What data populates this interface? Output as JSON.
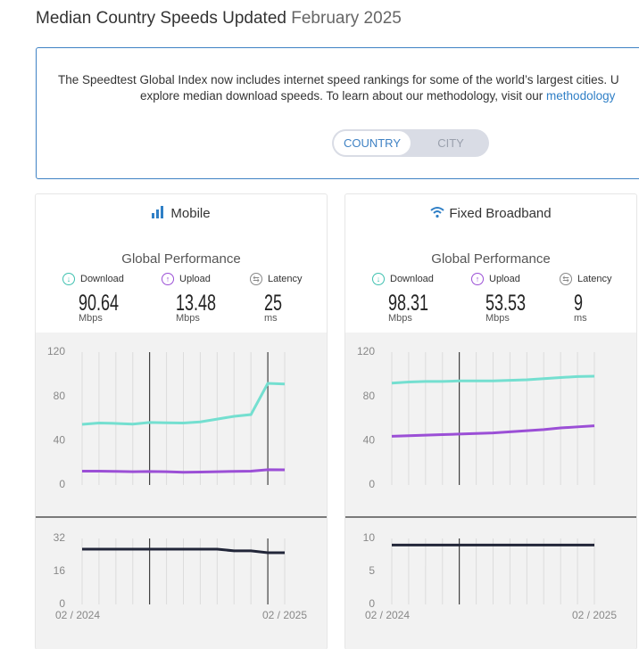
{
  "header": {
    "title": "Median Country Speeds Updated",
    "date": "February 2025"
  },
  "notice": {
    "line1": "The Speedtest Global Index now includes internet speed rankings for some of the world’s largest cities. U",
    "line2": "explore median download speeds. To learn about our methodology, visit our ",
    "link": "methodology"
  },
  "toggle": [
    "COUNTRY",
    "CITY"
  ],
  "panels": [
    {
      "name": "Mobile",
      "subtitle": "Global Performance",
      "metrics": [
        {
          "label": "Download",
          "value": 90.64,
          "unit": "Mbps"
        },
        {
          "label": "Upload",
          "value": 13.48,
          "unit": "Mbps"
        },
        {
          "label": "Latency",
          "value": 25,
          "unit": "ms"
        }
      ],
      "speed_chart": {
        "ylim": [
          0,
          120
        ],
        "yticks": [
          0,
          40,
          80,
          120
        ],
        "series": [
          {
            "color": "#74dfd0",
            "values": [
              54.8,
              56,
              55.6,
              55,
              56.5,
              56.2,
              56,
              57,
              59.5,
              62,
              63.6,
              91.8,
              91.2
            ]
          },
          {
            "color": "#9b4fd6",
            "values": [
              12.5,
              12.5,
              12.3,
              12,
              12.2,
              12,
              11.5,
              11.7,
              12,
              12.3,
              12.5,
              13.8,
              13.7
            ]
          }
        ]
      },
      "latency_chart": {
        "ylim": [
          0,
          32
        ],
        "yticks": [
          0,
          16,
          32
        ],
        "series": [
          {
            "color": "#222639",
            "values": [
              26.8,
              26.8,
              26.8,
              26.8,
              26.8,
              26.8,
              26.8,
              26.8,
              26.8,
              26,
              26,
              25.1,
              25.1
            ]
          }
        ]
      },
      "xlabels": [
        "02 / 2024",
        "02 / 2025"
      ]
    },
    {
      "name": "Fixed Broadband",
      "subtitle": "Global Performance",
      "metrics": [
        {
          "label": "Download",
          "value": 98.31,
          "unit": "Mbps"
        },
        {
          "label": "Upload",
          "value": 53.53,
          "unit": "Mbps"
        },
        {
          "label": "Latency",
          "value": 9,
          "unit": "ms"
        }
      ],
      "speed_chart": {
        "ylim": [
          0,
          120
        ],
        "yticks": [
          0,
          40,
          80,
          120
        ],
        "series": [
          {
            "color": "#74dfd0",
            "values": [
              92,
              93,
              93.5,
              93.5,
              94,
              94,
              94,
              94.5,
              95,
              96,
              97,
              98,
              98.3
            ]
          },
          {
            "color": "#9b4fd6",
            "values": [
              44,
              44.5,
              45,
              45.5,
              46,
              46.5,
              47,
              48,
              49,
              50,
              51.5,
              52.5,
              53.5
            ]
          }
        ]
      },
      "latency_chart": {
        "ylim": [
          0,
          10
        ],
        "yticks": [
          0,
          5,
          10
        ],
        "series": [
          {
            "color": "#222639",
            "values": [
              9,
              9,
              9,
              9,
              9,
              9,
              9,
              9,
              9,
              9,
              9,
              9,
              9
            ]
          }
        ]
      },
      "xlabels": [
        "02 / 2024",
        "02 / 2025"
      ]
    }
  ]
}
